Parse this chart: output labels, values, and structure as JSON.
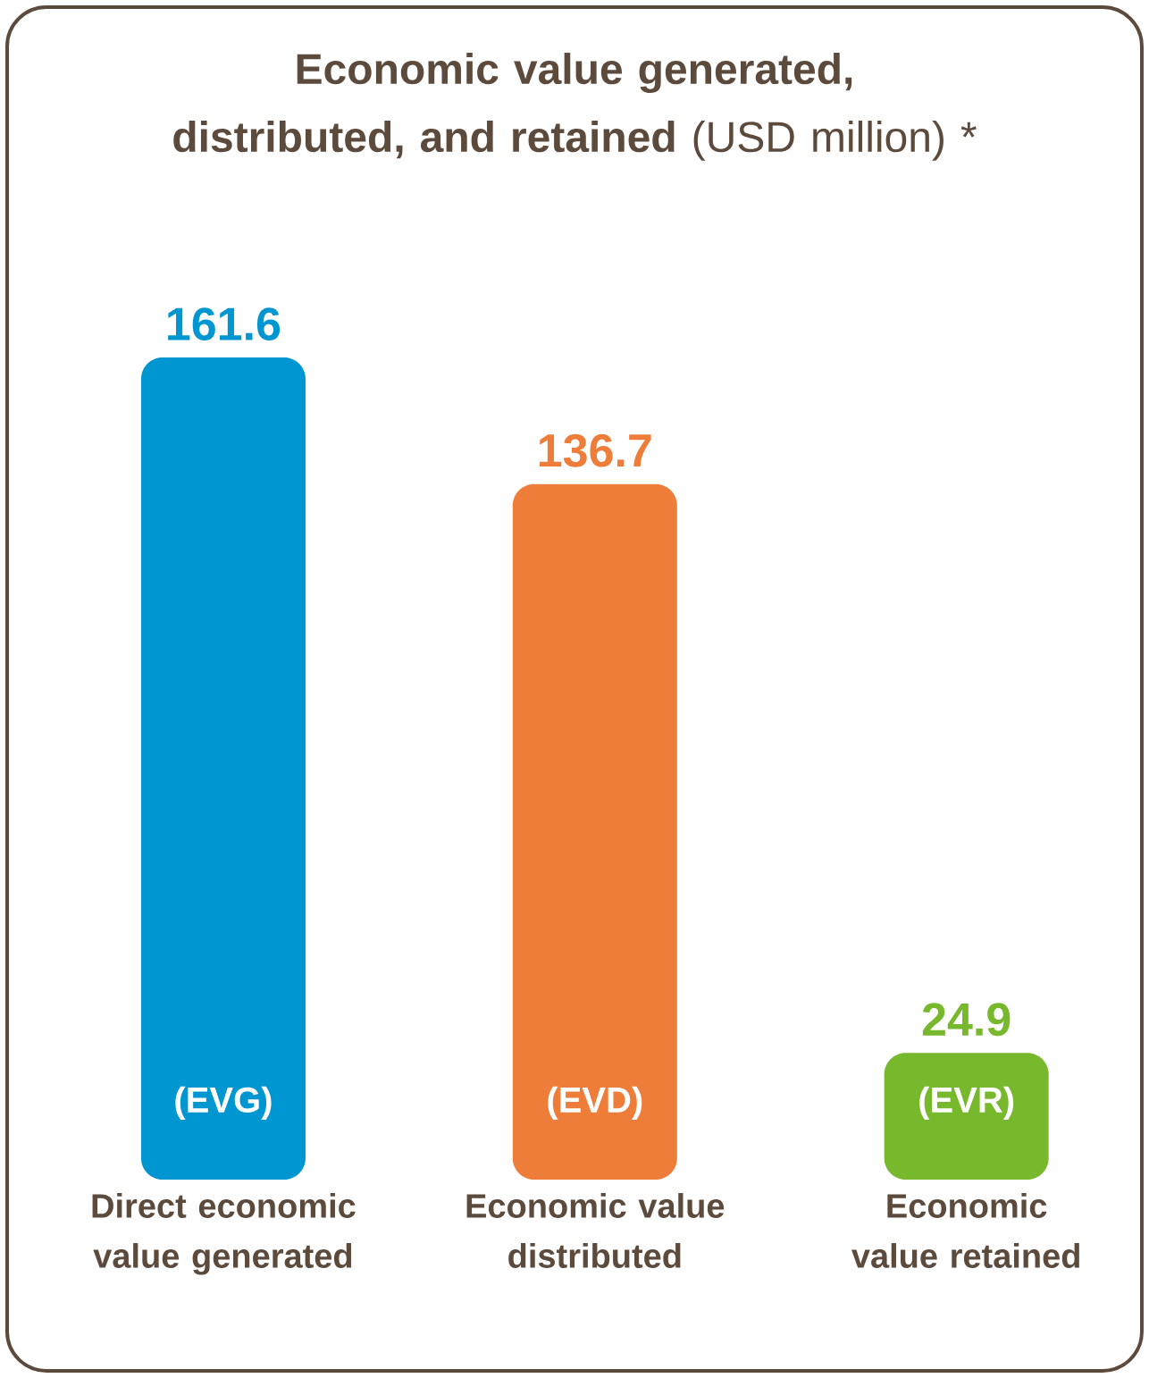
{
  "chart_data": {
    "type": "bar",
    "title": "**Economic value generated, distributed, and retained** (USD million) *",
    "categories": [
      "Direct economic value generated",
      "Economic value distributed",
      "Economic value retained"
    ],
    "values": [
      161.6,
      136.7,
      24.9
    ],
    "colors": [
      "#0096d2",
      "#ef7d3a",
      "#77b82c"
    ],
    "data_labels": true,
    "annotations": [
      "(EVG)",
      "(EVD)",
      "(EVR)"
    ]
  }
}
